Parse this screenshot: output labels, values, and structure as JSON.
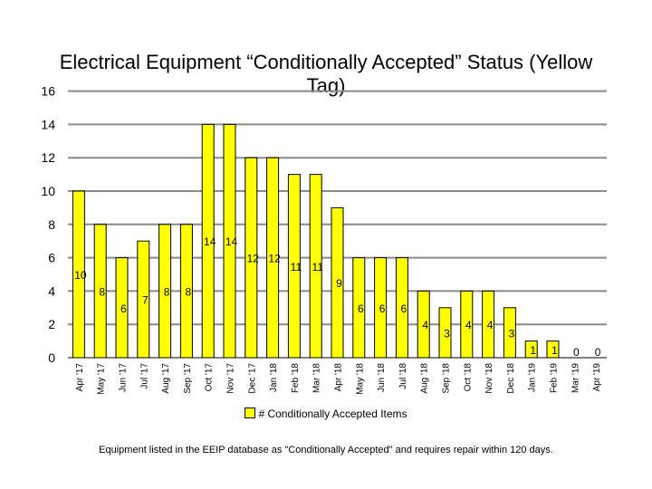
{
  "chart_data": {
    "type": "bar",
    "title": "Electrical Equipment “Conditionally Accepted” Status (Yellow Tag)",
    "categories": [
      "Apr '17",
      "May '17",
      "Jun '17",
      "Jul '17",
      "Aug '17",
      "Sep '17",
      "Oct '17",
      "Nov '17",
      "Dec '17",
      "Jan '18",
      "Feb '18",
      "Mar '18",
      "Apr '18",
      "May '18",
      "Jun '18",
      "Jul '18",
      "Aug '18",
      "Sep '18",
      "Oct '18",
      "Nov '18",
      "Dec '18",
      "Jan '19",
      "Feb '19",
      "Mar '19",
      "Apr '19"
    ],
    "series": [
      {
        "name": "# Conditionally Accepted Items",
        "values": [
          10,
          8,
          6,
          7,
          8,
          8,
          14,
          14,
          12,
          12,
          11,
          11,
          9,
          6,
          6,
          6,
          4,
          3,
          4,
          4,
          3,
          1,
          1,
          0,
          0
        ]
      }
    ],
    "ylim": [
      0,
      16
    ],
    "yticks": [
      0,
      2,
      4,
      6,
      8,
      10,
      12,
      14,
      16
    ],
    "grid": true,
    "legend_position": "bottom",
    "bar_color": "#ffff00"
  },
  "footnote": "Equipment listed in the EEIP database as \"Conditionally Accepted\" and requires repair within 120 days."
}
